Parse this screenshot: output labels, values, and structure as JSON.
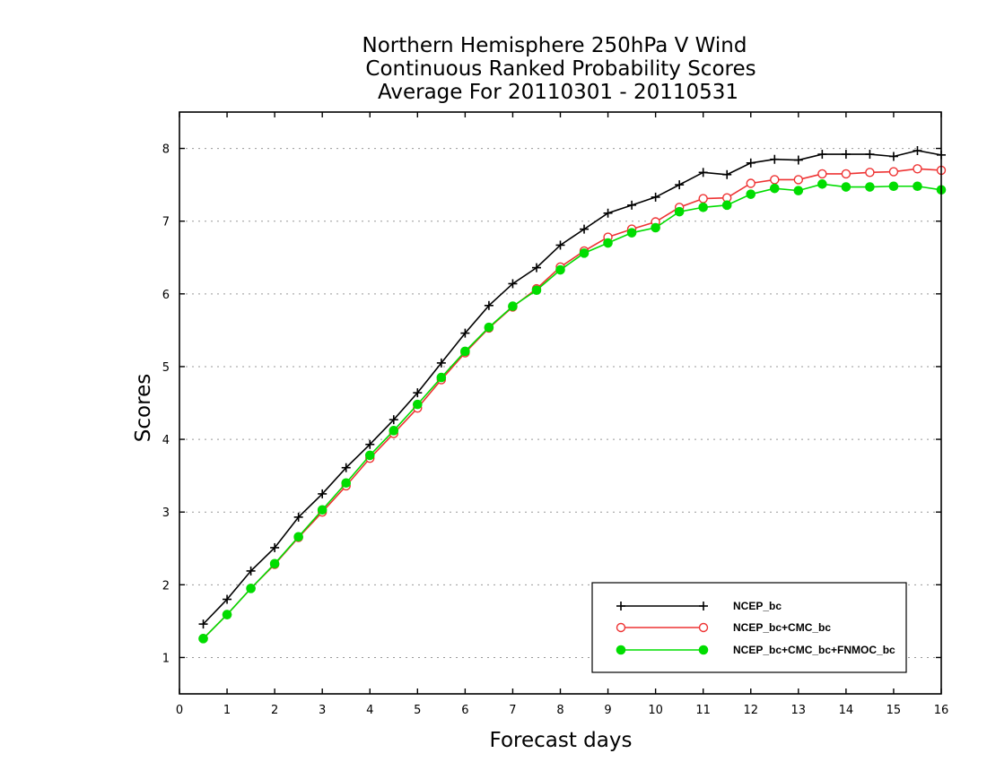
{
  "chart_data": {
    "type": "line",
    "title_lines": [
      "Northern Hemisphere 250hPa V Wind",
      "Continuous Ranked Probability Scores",
      "Average For 20110301 - 20110531"
    ],
    "xlabel": "Forecast days",
    "ylabel": "Scores",
    "xlim": [
      0,
      16
    ],
    "ylim": [
      0.5,
      8.5
    ],
    "x_ticks": [
      0,
      1,
      2,
      3,
      4,
      5,
      6,
      7,
      8,
      9,
      10,
      11,
      12,
      13,
      14,
      15,
      16
    ],
    "y_ticks": [
      1,
      2,
      3,
      4,
      5,
      6,
      7,
      8
    ],
    "grid": "horizontal dotted",
    "legend_position": "bottom-right",
    "x": [
      0.5,
      1,
      1.5,
      2,
      2.5,
      3,
      3.5,
      4,
      4.5,
      5,
      5.5,
      6,
      6.5,
      7,
      7.5,
      8,
      8.5,
      9,
      9.5,
      10,
      10.5,
      11,
      11.5,
      12,
      12.5,
      13,
      13.5,
      14,
      14.5,
      15,
      15.5,
      16
    ],
    "series": [
      {
        "name": "NCEP_bc",
        "color": "#000000",
        "marker": "plus",
        "values": [
          1.46,
          1.8,
          2.19,
          2.51,
          2.93,
          3.25,
          3.61,
          3.93,
          4.27,
          4.64,
          5.05,
          5.46,
          5.84,
          6.14,
          6.36,
          6.67,
          6.89,
          7.11,
          7.22,
          7.33,
          7.5,
          7.67,
          7.64,
          7.8,
          7.85,
          7.84,
          7.92,
          7.92,
          7.92,
          7.89,
          7.97,
          7.91
        ]
      },
      {
        "name": "NCEP_bc+CMC_bc",
        "color": "#ee3333",
        "marker": "open-circle",
        "values": [
          1.26,
          1.59,
          1.95,
          2.28,
          2.65,
          3.0,
          3.36,
          3.74,
          4.08,
          4.43,
          4.82,
          5.19,
          5.53,
          5.82,
          6.07,
          6.37,
          6.59,
          6.78,
          6.89,
          6.99,
          7.19,
          7.31,
          7.32,
          7.52,
          7.57,
          7.57,
          7.65,
          7.65,
          7.67,
          7.68,
          7.72,
          7.7
        ]
      },
      {
        "name": "NCEP_bc+CMC_bc+FNMOC_bc",
        "color": "#00dd00",
        "marker": "filled-circle",
        "values": [
          1.26,
          1.59,
          1.95,
          2.29,
          2.66,
          3.03,
          3.4,
          3.78,
          4.12,
          4.48,
          4.85,
          5.21,
          5.54,
          5.83,
          6.05,
          6.33,
          6.56,
          6.7,
          6.84,
          6.91,
          7.13,
          7.19,
          7.22,
          7.37,
          7.45,
          7.42,
          7.51,
          7.47,
          7.47,
          7.48,
          7.48,
          7.43
        ]
      }
    ]
  }
}
